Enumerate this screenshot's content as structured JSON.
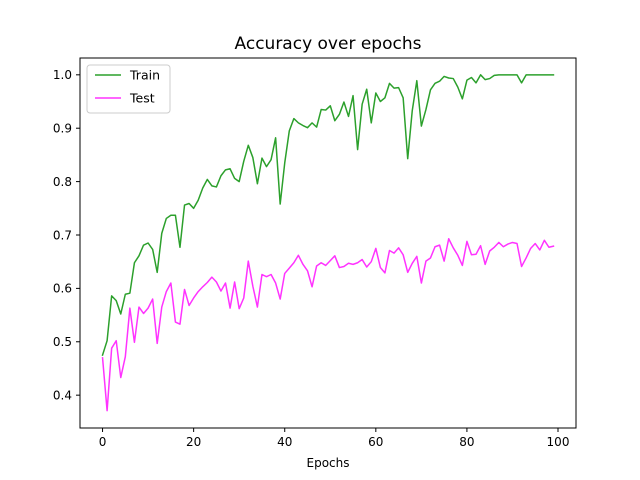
{
  "chart_data": {
    "type": "line",
    "title": "Accuracy over epochs",
    "xlabel": "Epochs",
    "ylabel": "",
    "xlim": [
      -4.95,
      103.95
    ],
    "ylim": [
      0.3385,
      1.0315
    ],
    "xticks": [
      0,
      20,
      40,
      60,
      80,
      100
    ],
    "yticks": [
      0.4,
      0.5,
      0.6,
      0.7,
      0.8,
      0.9,
      1.0
    ],
    "xtick_labels": [
      "0",
      "20",
      "40",
      "60",
      "80",
      "100"
    ],
    "ytick_labels": [
      "0.4",
      "0.5",
      "0.6",
      "0.7",
      "0.8",
      "0.9",
      "1.0"
    ],
    "grid": false,
    "legend_position": "top-left",
    "x": [
      0,
      1,
      2,
      3,
      4,
      5,
      6,
      7,
      8,
      9,
      10,
      11,
      12,
      13,
      14,
      15,
      16,
      17,
      18,
      19,
      20,
      21,
      22,
      23,
      24,
      25,
      26,
      27,
      28,
      29,
      30,
      31,
      32,
      33,
      34,
      35,
      36,
      37,
      38,
      39,
      40,
      41,
      42,
      43,
      44,
      45,
      46,
      47,
      48,
      49,
      50,
      51,
      52,
      53,
      54,
      55,
      56,
      57,
      58,
      59,
      60,
      61,
      62,
      63,
      64,
      65,
      66,
      67,
      68,
      69,
      70,
      71,
      72,
      73,
      74,
      75,
      76,
      77,
      78,
      79,
      80,
      81,
      82,
      83,
      84,
      85,
      86,
      87,
      88,
      89,
      90,
      91,
      92,
      93,
      94,
      95,
      96,
      97,
      98,
      99
    ],
    "series": [
      {
        "name": "Train",
        "color": "#2ca02c",
        "values": [
          0.475,
          0.502,
          0.586,
          0.577,
          0.552,
          0.589,
          0.591,
          0.648,
          0.661,
          0.681,
          0.685,
          0.673,
          0.63,
          0.703,
          0.731,
          0.737,
          0.737,
          0.677,
          0.756,
          0.759,
          0.75,
          0.765,
          0.788,
          0.804,
          0.792,
          0.79,
          0.811,
          0.822,
          0.824,
          0.806,
          0.8,
          0.838,
          0.868,
          0.845,
          0.796,
          0.844,
          0.828,
          0.841,
          0.882,
          0.758,
          0.835,
          0.895,
          0.918,
          0.91,
          0.905,
          0.901,
          0.91,
          0.902,
          0.935,
          0.934,
          0.942,
          0.914,
          0.926,
          0.949,
          0.922,
          0.961,
          0.86,
          0.945,
          0.973,
          0.91,
          0.966,
          0.95,
          0.957,
          0.984,
          0.975,
          0.976,
          0.957,
          0.843,
          0.933,
          0.989,
          0.904,
          0.935,
          0.972,
          0.984,
          0.988,
          0.997,
          0.994,
          0.993,
          0.977,
          0.955,
          0.99,
          0.995,
          0.985,
          1.0,
          0.991,
          0.993,
          0.999,
          1.0,
          1.0,
          1.0,
          1.0,
          1.0,
          0.985,
          1.0,
          1.0,
          1.0,
          1.0,
          1.0,
          1.0,
          1.0
        ]
      },
      {
        "name": "Test",
        "color": "#ff33ff",
        "values": [
          0.47,
          0.371,
          0.488,
          0.502,
          0.433,
          0.472,
          0.563,
          0.499,
          0.565,
          0.553,
          0.563,
          0.58,
          0.497,
          0.565,
          0.594,
          0.61,
          0.537,
          0.533,
          0.598,
          0.568,
          0.582,
          0.594,
          0.603,
          0.611,
          0.621,
          0.612,
          0.595,
          0.61,
          0.563,
          0.612,
          0.562,
          0.582,
          0.651,
          0.604,
          0.565,
          0.626,
          0.622,
          0.626,
          0.61,
          0.58,
          0.628,
          0.638,
          0.648,
          0.662,
          0.645,
          0.633,
          0.603,
          0.642,
          0.648,
          0.643,
          0.652,
          0.661,
          0.639,
          0.641,
          0.647,
          0.645,
          0.648,
          0.654,
          0.64,
          0.65,
          0.675,
          0.639,
          0.629,
          0.671,
          0.666,
          0.676,
          0.663,
          0.63,
          0.647,
          0.66,
          0.61,
          0.651,
          0.657,
          0.678,
          0.681,
          0.651,
          0.693,
          0.676,
          0.662,
          0.643,
          0.688,
          0.663,
          0.664,
          0.68,
          0.645,
          0.67,
          0.677,
          0.686,
          0.678,
          0.683,
          0.686,
          0.684,
          0.641,
          0.657,
          0.675,
          0.684,
          0.672,
          0.69,
          0.677,
          0.679
        ]
      }
    ]
  }
}
